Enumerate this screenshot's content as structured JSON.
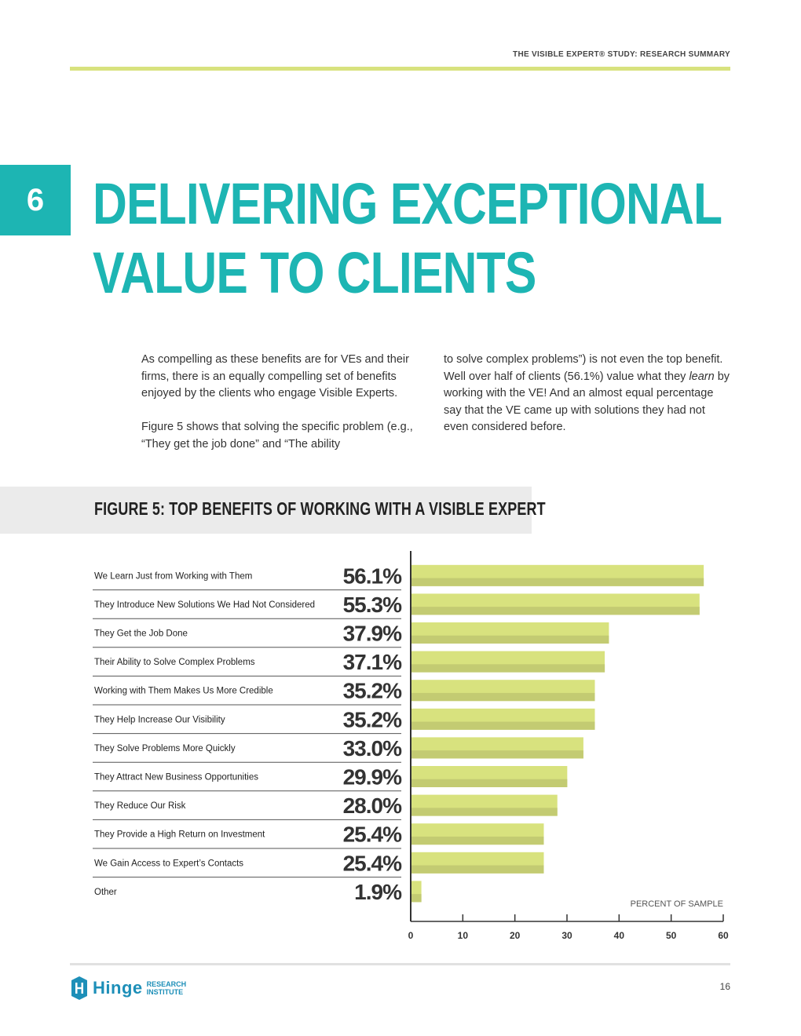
{
  "header": {
    "doc_title": "THE VISIBLE EXPERT® STUDY: RESEARCH SUMMARY"
  },
  "section": {
    "number": "6",
    "title_line1": "DELIVERING EXCEPTIONAL",
    "title_line2": "VALUE TO CLIENTS"
  },
  "body": {
    "para1": "As compelling as these benefits are for VEs and their firms, there is an equally compelling set of benefits enjoyed by the clients who engage Visible Experts.",
    "para2": "Figure 5 shows that solving the specific problem (e.g., “They get the job done” and “The ability",
    "para3_part1": "to solve complex problems”) is not even the top benefit. Well over half of clients (56.1%) value what they ",
    "para3_emph": "learn",
    "para3_part2": " by working with the VE! And an almost equal percentage say that the VE came up with solutions they had not even considered before."
  },
  "figure": {
    "title": "FIGURE 5: TOP BENEFITS OF WORKING WITH A VISIBLE EXPERT"
  },
  "chart_data": {
    "type": "bar",
    "orientation": "horizontal",
    "categories": [
      "We Learn Just from Working with Them",
      "They Introduce New Solutions We Had Not Considered",
      "They Get the Job Done",
      "Their Ability to Solve Complex Problems",
      "Working with Them Makes Us More Credible",
      "They Help Increase Our Visibility",
      "They Solve Problems More Quickly",
      "They Attract New Business Opportunities",
      "They Reduce Our Risk",
      "They Provide a High Return on Investment",
      "We Gain Access to Expert’s Contacts",
      "Other"
    ],
    "values": [
      56.1,
      55.3,
      37.9,
      37.1,
      35.2,
      35.2,
      33.0,
      29.9,
      28.0,
      25.4,
      25.4,
      1.9
    ],
    "value_labels": [
      "56.1%",
      "55.3%",
      "37.9%",
      "37.1%",
      "35.2%",
      "35.2%",
      "33.0%",
      "29.9%",
      "28.0%",
      "25.4%",
      "25.4%",
      "1.9%"
    ],
    "xlim": [
      0,
      60
    ],
    "xticks": [
      "0",
      "10",
      "20",
      "30",
      "40",
      "50",
      "60"
    ],
    "xlabel": "PERCENT OF SAMPLE",
    "bar_color": "#d8e27e",
    "bar_shadow_color": "#c3cb72",
    "grid": false
  },
  "footer": {
    "logo_word": "Hinge",
    "logo_line1": "RESEARCH",
    "logo_line2": "INSTITUTE",
    "page_number": "16"
  },
  "colors": {
    "accent": "#1db5b3",
    "rule": "#d8e27e",
    "brand_blue": "#1d8fb8"
  }
}
